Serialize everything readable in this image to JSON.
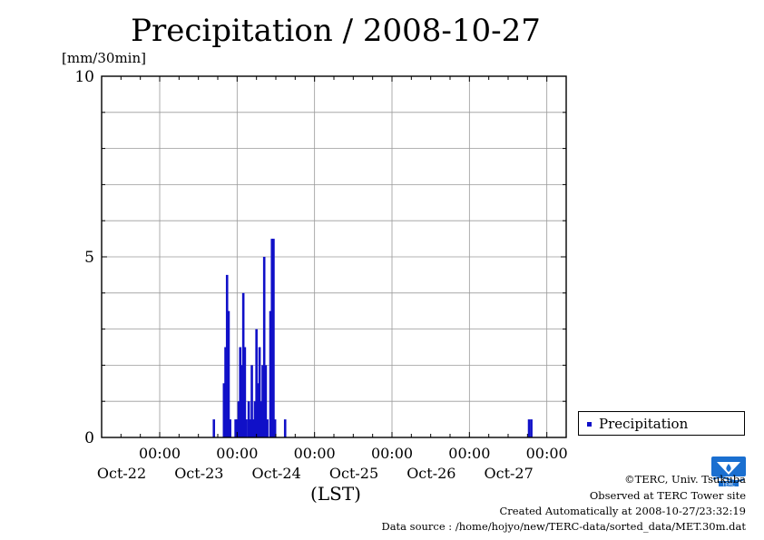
{
  "title": "Precipitation / 2008-10-27",
  "y_unit": "[mm/30min]",
  "x_axis_caption": "(LST)",
  "legend": {
    "label": "Precipitation"
  },
  "colors": {
    "series": "#1010c8",
    "logo": "#1a6fd0",
    "grid": "#9a9a9a"
  },
  "footer": {
    "copyright": "©TERC, Univ. Tsukuba",
    "observed": "Observed at TERC Tower site",
    "created": "Created Automatically at 2008-10-27/23:32:19",
    "source": "Data source : /home/hojyo/new/TERC-data/sorted_data/MET.30m.dat"
  },
  "logo_icon": "terc-logo-icon",
  "chart_data": {
    "type": "bar",
    "title": "Precipitation / 2008-10-27",
    "ylabel": "[mm/30min]",
    "xlabel": "(LST)",
    "ylim": [
      0,
      10
    ],
    "yticks": [
      "0",
      "5",
      "10"
    ],
    "xticks": [
      {
        "time": "00:00",
        "date": "Oct-22"
      },
      {
        "time": "00:00",
        "date": "Oct-23"
      },
      {
        "time": "00:00",
        "date": "Oct-24"
      },
      {
        "time": "00:00",
        "date": "Oct-25"
      },
      {
        "time": "00:00",
        "date": "Oct-26"
      },
      {
        "time": "00:00",
        "date": "Oct-27"
      }
    ],
    "x_unit": "days since Oct-22 00:00",
    "xlim": [
      -0.75,
      5.25
    ],
    "grid": true,
    "legend_position": "right",
    "series": [
      {
        "name": "Precipitation",
        "points": [
          [
            0.7,
            0.5
          ],
          [
            0.83,
            1.5
          ],
          [
            0.85,
            2.5
          ],
          [
            0.87,
            4.5
          ],
          [
            0.89,
            3.5
          ],
          [
            0.91,
            0.5
          ],
          [
            0.98,
            0.5
          ],
          [
            1.0,
            0.5
          ],
          [
            1.02,
            1.0
          ],
          [
            1.04,
            2.5
          ],
          [
            1.06,
            2.0
          ],
          [
            1.08,
            4.0
          ],
          [
            1.1,
            2.5
          ],
          [
            1.12,
            0.5
          ],
          [
            1.15,
            1.0
          ],
          [
            1.17,
            0.5
          ],
          [
            1.19,
            2.0
          ],
          [
            1.21,
            0.5
          ],
          [
            1.23,
            1.0
          ],
          [
            1.25,
            3.0
          ],
          [
            1.27,
            1.5
          ],
          [
            1.29,
            2.5
          ],
          [
            1.31,
            1.0
          ],
          [
            1.33,
            2.0
          ],
          [
            1.35,
            5.0
          ],
          [
            1.37,
            2.0
          ],
          [
            1.39,
            0.5
          ],
          [
            1.43,
            3.5
          ],
          [
            1.45,
            5.5
          ],
          [
            1.47,
            5.5
          ],
          [
            1.49,
            0.5
          ],
          [
            1.62,
            0.5
          ],
          [
            4.77,
            0.5
          ],
          [
            4.8,
            0.5
          ]
        ]
      }
    ]
  }
}
